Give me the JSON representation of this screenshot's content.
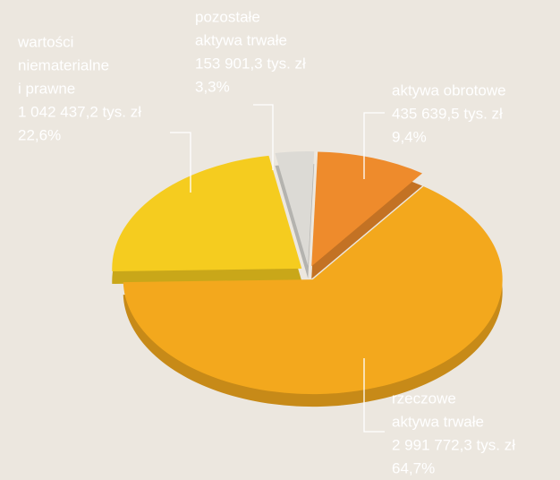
{
  "chart_data": {
    "type": "pie",
    "categories": [
      [
        "pozostałe",
        "aktywa trwałe"
      ],
      [
        "aktywa obrotowe"
      ],
      [
        "rzeczowe",
        "aktywa trwałe"
      ],
      [
        "wartości",
        "niematerialne",
        "i prawne"
      ]
    ],
    "values": [
      3.3,
      9.4,
      64.7,
      22.6
    ],
    "value_labels": [
      "3,3%",
      "9,4%",
      "64,7%",
      "22,6%"
    ],
    "amount_labels": [
      "153 901,3 tys. zł",
      "435 639,5 tys. zł",
      "2 991 772,3 tys. zł",
      "1 042 437,2 tys. zł"
    ],
    "colors": [
      "#dcdad5",
      "#ee8b2c",
      "#f3a81d",
      "#f5cc1f"
    ]
  }
}
